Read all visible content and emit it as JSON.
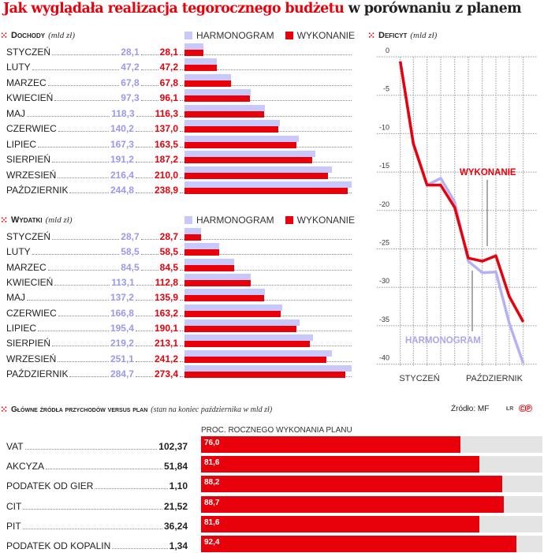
{
  "title": {
    "red": "Jak wyglądała realizacja tegorocznego budżetu",
    "black": "w porównaniu z planem"
  },
  "colors": {
    "wykonanie": "#e8000b",
    "harmonogram": "#c8c8fb",
    "harmonogram_text": "#9a98ee",
    "plan_bg": "#e4e4e4"
  },
  "chart_data": [
    {
      "type": "bar",
      "orientation": "horizontal",
      "title": "Dochody",
      "unit": "(mld zł)",
      "legend": [
        "HARMONOGRAM",
        "WYKONANIE"
      ],
      "categories": [
        "STYCZEŃ",
        "LUTY",
        "MARZEC",
        "KWIECIEŃ",
        "MAJ",
        "CZERWIEC",
        "LIPIEC",
        "SIERPIEŃ",
        "WRZESIEŃ",
        "PAŹDZIERNIK"
      ],
      "series": [
        {
          "name": "HARMONOGRAM",
          "values": [
            "28,1",
            "47,2",
            "67,8",
            "97,3",
            "118,3",
            "140,2",
            "167,3",
            "191,2",
            "216,4",
            "244,8"
          ]
        },
        {
          "name": "WYKONANIE",
          "values": [
            "28,1",
            "47,2",
            "67,8",
            "96,1",
            "116,3",
            "137,0",
            "163,5",
            "187,2",
            "210,0",
            "238,9"
          ]
        }
      ]
    },
    {
      "type": "bar",
      "orientation": "horizontal",
      "title": "Wydatki",
      "unit": "(mld zł)",
      "legend": [
        "HARMONOGRAM",
        "WYKONANIE"
      ],
      "categories": [
        "STYCZEŃ",
        "LUTY",
        "MARZEC",
        "KWIECIEŃ",
        "MAJ",
        "CZERWIEC",
        "LIPIEC",
        "SIERPIEŃ",
        "WRZESIEŃ",
        "PAŹDZIERNIK"
      ],
      "series": [
        {
          "name": "HARMONOGRAM",
          "values": [
            "28,7",
            "58,5",
            "84,5",
            "113,1",
            "137,2",
            "166,8",
            "195,4",
            "219,2",
            "251,1",
            "284,7"
          ]
        },
        {
          "name": "WYKONANIE",
          "values": [
            "28,7",
            "58,5",
            "84,5",
            "112,8",
            "135,9",
            "163,2",
            "190,1",
            "213,1",
            "241,2",
            "273,4"
          ]
        }
      ]
    },
    {
      "type": "line",
      "title": "Deficyt",
      "unit": "(mld zł)",
      "x_labels": [
        "STYCZEŃ",
        "PAŹDZIERNIK"
      ],
      "y_ticks": [
        "0",
        "-5",
        "-10",
        "-15",
        "-20",
        "-25",
        "-30",
        "-35",
        "-40"
      ],
      "ylim": [
        -40,
        0
      ],
      "grid": true,
      "series": [
        {
          "name": "WYKONANIE",
          "values": [
            -0.6,
            -11.3,
            -16.7,
            -16.7,
            -19.6,
            -26.2,
            -26.6,
            -25.9,
            -31.2,
            -34.5
          ]
        },
        {
          "name": "HARMONOGRAM",
          "values": [
            -0.6,
            -11.3,
            -16.7,
            -15.8,
            -18.9,
            -26.6,
            -28.1,
            -28.0,
            -34.7,
            -39.9
          ]
        }
      ]
    },
    {
      "type": "bar",
      "orientation": "horizontal",
      "title": "Główne źródła przychodów versus plan",
      "unit": "(stan na koniec października w mld zł)",
      "value_header": "PROC. ROCZNEGO WYKONANIA PLANU",
      "xlim": [
        0,
        100
      ],
      "categories": [
        "VAT",
        "AKCYZA",
        "PODATEK OD GIER",
        "CIT",
        "PIT",
        "PODATEK OD KOPALIN"
      ],
      "amounts": [
        "102,37",
        "51,84",
        "1,10",
        "21,52",
        "36,24",
        "1,34"
      ],
      "percent_labels": [
        "76,0",
        "81,6",
        "88,2",
        "88,7",
        "81,6",
        "92,4"
      ],
      "percent": [
        76.0,
        81.6,
        88.2,
        88.7,
        81.6,
        92.4
      ]
    }
  ],
  "source": "Źródło: MF",
  "credit": "ŁR"
}
